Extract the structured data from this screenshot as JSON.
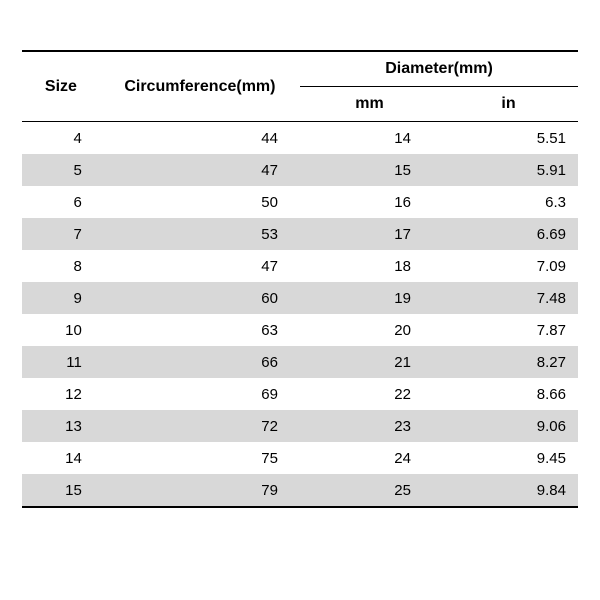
{
  "table": {
    "type": "table",
    "background_color": "#ffffff",
    "text_color": "#000000",
    "band_color": "#d8d8d8",
    "border_color": "#000000",
    "header_fontsize": 16,
    "cell_fontsize": 15,
    "columns": {
      "size": {
        "label": "Size",
        "width_pct": 14,
        "align": "right"
      },
      "circumference": {
        "label": "Circumference(mm)",
        "width_pct": 36,
        "align": "right"
      },
      "diameter_group": {
        "label": "Diameter(mm)"
      },
      "diameter_mm": {
        "label": "mm",
        "width_pct": 25,
        "align": "right"
      },
      "diameter_in": {
        "label": "in",
        "width_pct": 25,
        "align": "right"
      }
    },
    "rows": [
      {
        "size": "4",
        "circ": "44",
        "mm": "14",
        "in": "5.51"
      },
      {
        "size": "5",
        "circ": "47",
        "mm": "15",
        "in": "5.91"
      },
      {
        "size": "6",
        "circ": "50",
        "mm": "16",
        "in": "6.3"
      },
      {
        "size": "7",
        "circ": "53",
        "mm": "17",
        "in": "6.69"
      },
      {
        "size": "8",
        "circ": "47",
        "mm": "18",
        "in": "7.09"
      },
      {
        "size": "9",
        "circ": "60",
        "mm": "19",
        "in": "7.48"
      },
      {
        "size": "10",
        "circ": "63",
        "mm": "20",
        "in": "7.87"
      },
      {
        "size": "11",
        "circ": "66",
        "mm": "21",
        "in": "8.27"
      },
      {
        "size": "12",
        "circ": "69",
        "mm": "22",
        "in": "8.66"
      },
      {
        "size": "13",
        "circ": "72",
        "mm": "23",
        "in": "9.06"
      },
      {
        "size": "14",
        "circ": "75",
        "mm": "24",
        "in": "9.45"
      },
      {
        "size": "15",
        "circ": "79",
        "mm": "25",
        "in": "9.84"
      }
    ]
  }
}
